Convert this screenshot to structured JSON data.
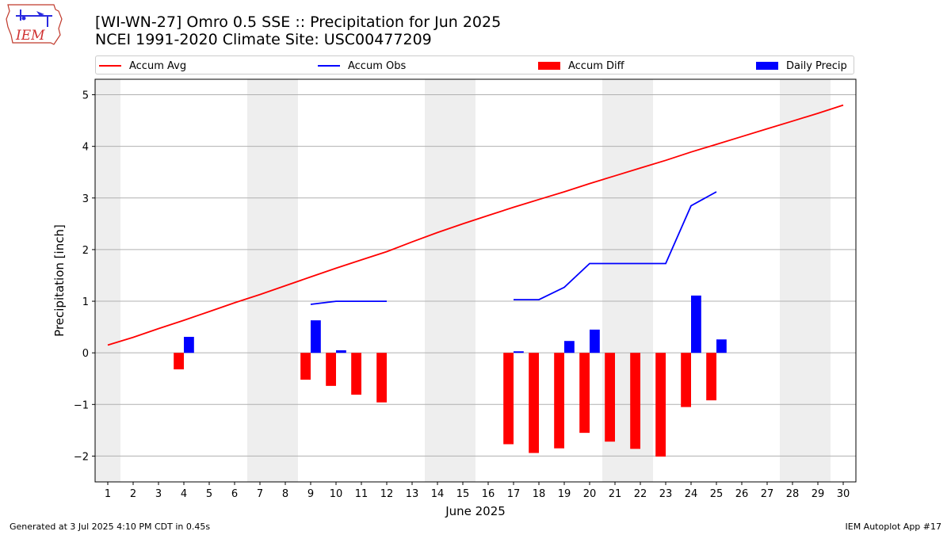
{
  "logo": {
    "text": "IEM",
    "icon": "iem-iowa-map-logo-icon"
  },
  "title": {
    "line1": "[WI-WN-27] Omro 0.5 SSE :: Precipitation for Jun 2025",
    "line2": "NCEI 1991-2020 Climate Site: USC00477209"
  },
  "legend": [
    {
      "label": "Accum Avg",
      "kind": "line",
      "color": "#ff0000"
    },
    {
      "label": "Accum Obs",
      "kind": "line",
      "color": "#0000ff"
    },
    {
      "label": "Accum Diff",
      "kind": "bar",
      "color": "#ff0000"
    },
    {
      "label": "Daily Precip",
      "kind": "bar",
      "color": "#0000ff"
    }
  ],
  "footer": {
    "left": "Generated at 3 Jul 2025 4:10 PM CDT in 0.45s",
    "right": "IEM Autoplot App #17"
  },
  "chart_data": {
    "type": "bar",
    "xlabel": "June 2025",
    "ylabel": "Precipitation [inch]",
    "xlim": [
      0.5,
      30.5
    ],
    "ylim": [
      -2.5,
      5.3
    ],
    "x_ticks": [
      1,
      2,
      3,
      4,
      5,
      6,
      7,
      8,
      9,
      10,
      11,
      12,
      13,
      14,
      15,
      16,
      17,
      18,
      19,
      20,
      21,
      22,
      23,
      24,
      25,
      26,
      27,
      28,
      29,
      30
    ],
    "y_ticks": [
      -2,
      -1,
      0,
      1,
      2,
      3,
      4,
      5
    ],
    "y_tick_labels": [
      "−2",
      "−1",
      "0",
      "1",
      "2",
      "3",
      "4",
      "5"
    ],
    "grid": "horizontal",
    "legend_position": "top",
    "weekend_shading": [
      [
        0.5,
        1.5
      ],
      [
        6.5,
        8.5
      ],
      [
        13.5,
        15.5
      ],
      [
        20.5,
        22.5
      ],
      [
        27.5,
        29.5
      ]
    ],
    "shade_color": "#eeeeee",
    "series": [
      {
        "name": "Accum Avg",
        "type": "line",
        "color": "#ff0000",
        "x": [
          1,
          2,
          3,
          4,
          5,
          6,
          7,
          8,
          9,
          10,
          11,
          12,
          13,
          14,
          15,
          16,
          17,
          18,
          19,
          20,
          21,
          22,
          23,
          24,
          25,
          26,
          27,
          28,
          29,
          30
        ],
        "values": [
          0.15,
          0.3,
          0.47,
          0.63,
          0.8,
          0.97,
          1.13,
          1.3,
          1.47,
          1.64,
          1.8,
          1.96,
          2.15,
          2.33,
          2.5,
          2.66,
          2.82,
          2.97,
          3.12,
          3.28,
          3.43,
          3.58,
          3.73,
          3.89,
          4.04,
          4.19,
          4.34,
          4.49,
          4.64,
          4.8
        ]
      },
      {
        "name": "Accum Obs",
        "type": "line",
        "color": "#0000ff",
        "x": [
          9,
          10,
          11,
          12,
          13,
          14,
          15,
          16,
          17,
          18,
          19,
          20,
          21,
          22,
          23,
          24,
          25
        ],
        "values": [
          0.94,
          1.0,
          1.0,
          1.0,
          null,
          null,
          null,
          null,
          1.03,
          1.03,
          1.27,
          1.73,
          1.73,
          1.73,
          1.73,
          2.85,
          3.12
        ]
      },
      {
        "name": "Accum Diff",
        "type": "bar",
        "color": "#ff0000",
        "x": [
          4,
          9,
          10,
          11,
          12,
          17,
          18,
          19,
          20,
          21,
          22,
          23,
          24,
          25
        ],
        "values": [
          -0.32,
          -0.52,
          -0.64,
          -0.81,
          -0.96,
          -1.77,
          -1.94,
          -1.85,
          -1.55,
          -1.72,
          -1.86,
          -2.01,
          -1.05,
          -0.92
        ]
      },
      {
        "name": "Daily Precip",
        "type": "bar",
        "color": "#0000ff",
        "x": [
          4,
          9,
          10,
          17,
          19,
          20,
          24,
          25
        ],
        "values": [
          0.31,
          0.63,
          0.05,
          0.03,
          0.23,
          0.45,
          1.11,
          0.26
        ]
      }
    ]
  }
}
